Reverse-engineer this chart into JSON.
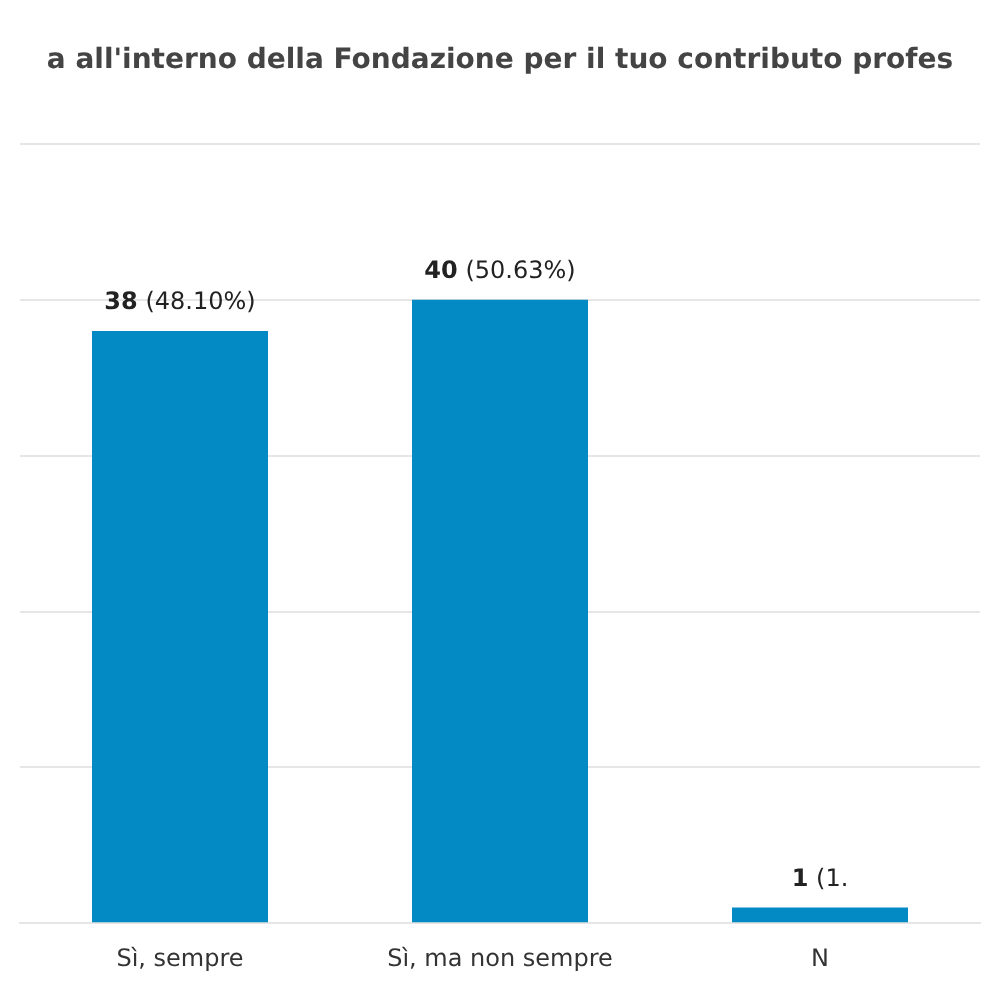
{
  "chart_data": {
    "type": "bar",
    "title": "a all'interno della Fondazione per il tuo contributo profes",
    "categories": [
      "Sì, sempre",
      "Sì, ma non sempre",
      "N"
    ],
    "values": [
      38,
      40,
      1
    ],
    "color": "#038ac4",
    "value_labels": [
      "38 (48.10%)",
      "40 (50.63%)",
      "1 (1."
    ],
    "ylim": [
      0,
      50
    ],
    "yticks": [
      {
        "value": 0,
        "label": null
      },
      {
        "value": 10,
        "label": null
      },
      {
        "value": 20,
        "label": null
      },
      {
        "value": 30,
        "label": null
      },
      {
        "value": 40,
        "label": null
      },
      {
        "value": 50,
        "label": null
      }
    ],
    "grid": "y",
    "tick_labels": "x"
  }
}
